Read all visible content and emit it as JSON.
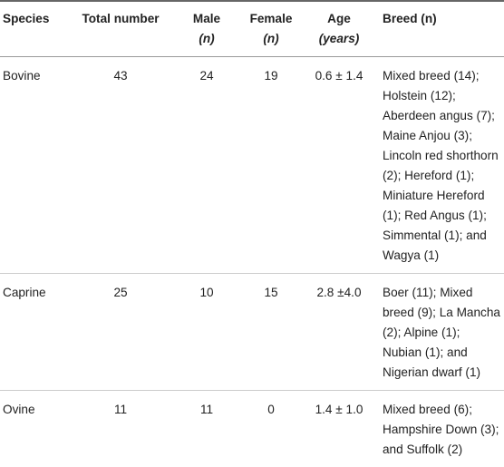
{
  "table": {
    "header": [
      [
        "Species"
      ],
      [
        "Total number"
      ],
      [
        "Male",
        "(n)"
      ],
      [
        "Female",
        "(n)"
      ],
      [
        "Age",
        "(years)"
      ],
      [
        "Breed (n)"
      ]
    ],
    "rows": [
      [
        "Bovine",
        "43",
        "24",
        "19",
        "0.6 ± 1.4",
        "Mixed breed (14); Holstein (12); Aberdeen angus (7); Maine Anjou (3); Lincoln red shorthorn (2); Hereford (1); Miniature Hereford (1); Red Angus (1); Simmental (1); and Wagya (1)"
      ],
      [
        "Caprine",
        "25",
        "10",
        "15",
        "2.8 ±4.0",
        "Boer (11); Mixed breed (9); La Mancha (2); Alpine (1); Nubian (1); and Nigerian dwarf (1)"
      ],
      [
        "Ovine",
        "11",
        "11",
        "0",
        "1.4 ± 1.0",
        "Mixed breed (6); Hampshire Down (3); and Suffolk (2)"
      ]
    ]
  }
}
